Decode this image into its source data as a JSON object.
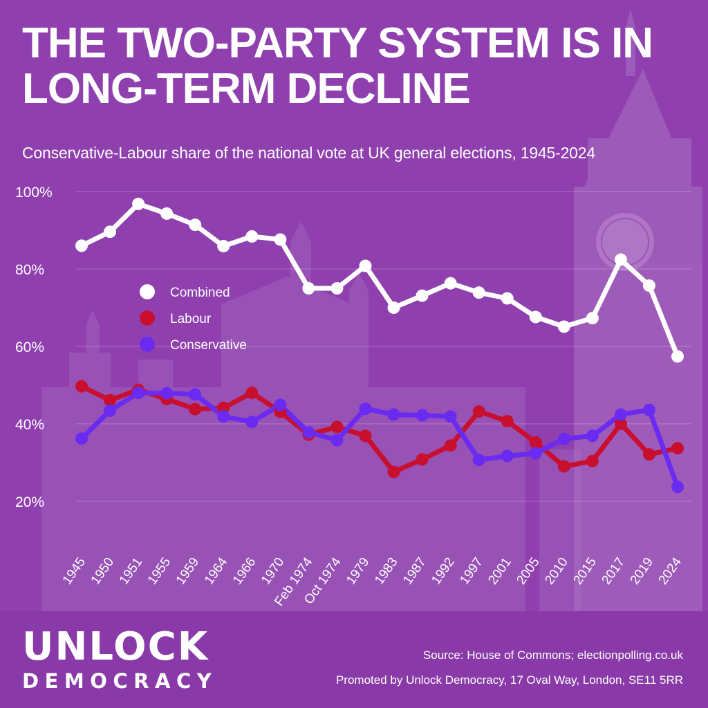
{
  "header": {
    "title": "THE TWO-PARTY SYSTEM IS IN LONG-TERM DECLINE",
    "subtitle": "Conservative-Labour share of the national vote at UK general elections, 1945-2024"
  },
  "colors": {
    "background": "#8f3fae",
    "combined": "#ffffff",
    "labour": "#c8102e",
    "conservative": "#6a2bf0",
    "text": "#ffffff"
  },
  "chart_data": {
    "type": "line",
    "title": "",
    "xlabel": "",
    "ylabel": "",
    "ylim": [
      20,
      100
    ],
    "yticks": [
      20,
      40,
      60,
      80,
      100
    ],
    "ytick_labels": [
      "20%",
      "40%",
      "60%",
      "80%",
      "100%"
    ],
    "grid": true,
    "legend_position": "upper-left",
    "categories": [
      "1945",
      "1950",
      "1951",
      "1955",
      "1959",
      "1964",
      "1966",
      "1970",
      "Feb 1974",
      "Oct 1974",
      "1979",
      "1983",
      "1987",
      "1992",
      "1997",
      "2001",
      "2005",
      "2010",
      "2015",
      "2017",
      "2019",
      "2024"
    ],
    "series": [
      {
        "name": "Combined",
        "color": "#ffffff",
        "values": [
          86.0,
          89.6,
          96.8,
          94.3,
          91.4,
          85.9,
          88.4,
          87.6,
          75.0,
          75.0,
          80.8,
          70.0,
          73.1,
          76.3,
          73.9,
          72.4,
          67.6,
          65.1,
          67.3,
          82.4,
          75.7,
          57.4
        ]
      },
      {
        "name": "Labour",
        "color": "#c8102e",
        "values": [
          49.7,
          46.1,
          48.8,
          46.4,
          43.8,
          44.1,
          48.0,
          43.1,
          37.2,
          39.2,
          36.9,
          27.6,
          30.8,
          34.4,
          43.2,
          40.7,
          35.2,
          29.0,
          30.4,
          40.0,
          32.1,
          33.7
        ]
      },
      {
        "name": "Conservative",
        "color": "#6a2bf0",
        "values": [
          36.2,
          43.4,
          48.0,
          47.9,
          47.6,
          41.9,
          40.5,
          44.9,
          37.8,
          35.8,
          43.9,
          42.4,
          42.2,
          41.9,
          30.7,
          31.7,
          32.4,
          36.1,
          36.9,
          42.4,
          43.6,
          23.7
        ]
      }
    ]
  },
  "footer": {
    "logo_top": "UNLOCK",
    "logo_bottom": "DEMOCRACY",
    "source": "Source: House of Commons; electionpolling.co.uk",
    "promoted": "Promoted by Unlock Democracy, 17 Oval Way, London, SE11 5RR"
  }
}
